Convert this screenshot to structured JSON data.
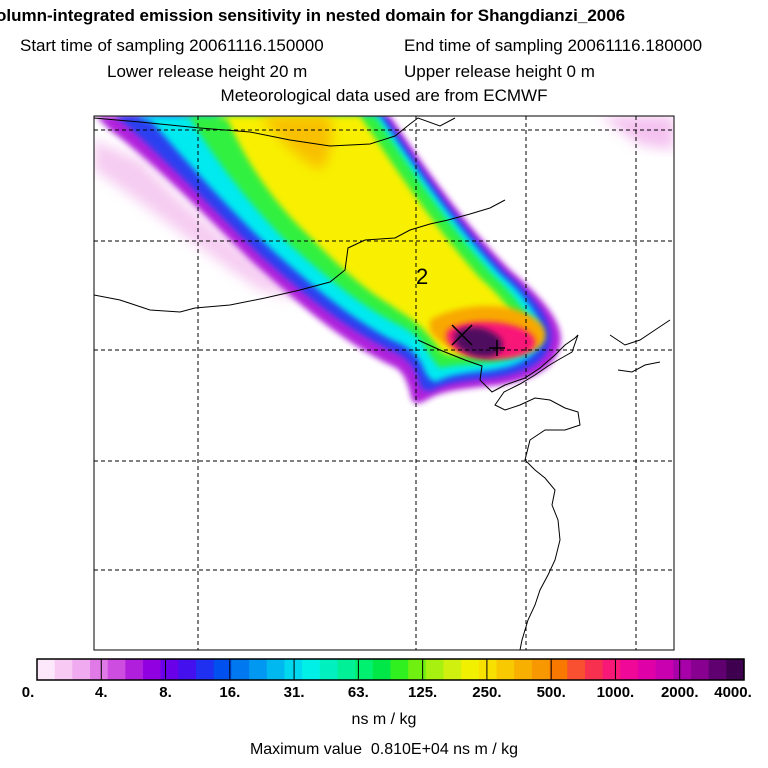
{
  "header": {
    "title": "olumn-integrated emission sensitivity in nested domain for Shangdianzi_2006",
    "start_time": "Start time of sampling 20061116.150000",
    "end_time": "End time of sampling 20061116.180000",
    "lower_height": "Lower release height   20 m",
    "upper_height": "Upper release height    0 m",
    "met_data": "Meteorological data used are from ECMWF"
  },
  "map": {
    "marker_label": "2",
    "release_marker_icon": "cross-marker-icon",
    "station_marker_icon": "plus-marker-icon"
  },
  "colorbar": {
    "tick_labels": [
      "0.",
      "4.",
      "8.",
      "16.",
      "31.",
      "63.",
      "125.",
      "250.",
      "500.",
      "1000.",
      "2000.",
      "4000."
    ],
    "colors": [
      "#fde8fb",
      "#f7c9f3",
      "#efaaf0",
      "#e07ae6",
      "#cc4de0",
      "#b020dc",
      "#9000e0",
      "#6a00e8",
      "#4410ee",
      "#2030f0",
      "#0050f0",
      "#0078f0",
      "#0098f0",
      "#00b8f0",
      "#00d8f0",
      "#00f0e8",
      "#00f0c0",
      "#00f098",
      "#00f070",
      "#00e848",
      "#30f020",
      "#70f010",
      "#a8f010",
      "#d0f010",
      "#f0f000",
      "#f8e000",
      "#f8c800",
      "#f8b000",
      "#f89800",
      "#f87800",
      "#f85030",
      "#f83050",
      "#f81878",
      "#f00898",
      "#e000a8",
      "#c800b0",
      "#a800a8",
      "#880090",
      "#600070",
      "#400050"
    ],
    "unit": "ns m / kg",
    "max_value": "Maximum value  0.810E+04 ns m / kg"
  }
}
